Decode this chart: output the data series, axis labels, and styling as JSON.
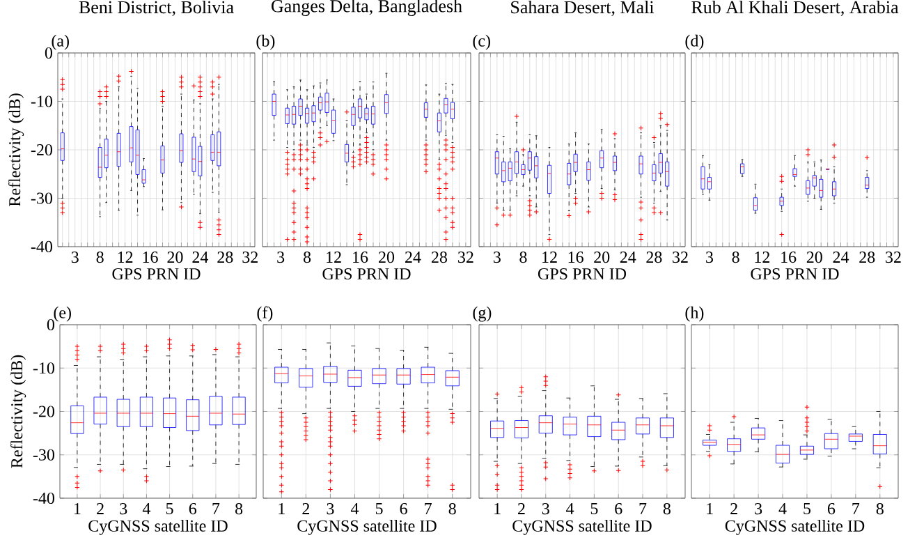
{
  "chart_data": [
    {
      "type": "box",
      "title": "Beni District, Bolivia",
      "xlabel": "GPS PRN ID",
      "ylabel": "Reflectivity (dB)",
      "annotations": [
        "(a)"
      ],
      "ylim": [
        -40,
        0
      ],
      "yticks": [
        -40,
        -30,
        -20,
        -10,
        0
      ],
      "grid": true,
      "categories": [
        null,
        null,
        "3",
        null,
        null,
        null,
        "8",
        null,
        null,
        null,
        "12",
        null,
        null,
        null,
        "16",
        null,
        null,
        null,
        "20",
        null,
        null,
        null,
        "24",
        null,
        null,
        null,
        "28",
        null,
        null,
        null,
        "32"
      ],
      "series": [
        {
          "color": "#0000ff",
          "boxes": [
            {
              "low": -30,
              "q1": -22.2,
              "median": -19.8,
              "q3": -16.5,
              "high": -9.5,
              "outliers": [
                -5.5,
                -6.5,
                -7.5,
                -31,
                -32,
                -33
              ]
            },
            null,
            null,
            null,
            null,
            null,
            {
              "low": -33.8,
              "q1": -25.7,
              "median": -23.6,
              "q3": -19.5,
              "high": -11.5,
              "outliers": [
                -8,
                -9,
                -10.5
              ]
            },
            {
              "low": -30.9,
              "q1": -23.7,
              "median": -21.1,
              "q3": -17.8,
              "high": -10,
              "outliers": [
                -7,
                -8,
                -9
              ]
            },
            null,
            {
              "low": -32.5,
              "q1": -23.4,
              "median": -20.4,
              "q3": -16.6,
              "high": -7,
              "outliers": [
                -4.8,
                -5.8
              ]
            },
            null,
            {
              "low": -28.4,
              "q1": -22.5,
              "median": -19.6,
              "q3": -15.2,
              "high": -4.8,
              "outliers": [
                -3.8
              ]
            },
            {
              "low": -33.5,
              "q1": -25.1,
              "median": -21.1,
              "q3": -15.9,
              "high": -7.3
            },
            {
              "low": -27.6,
              "q1": -26.9,
              "median": -26.2,
              "q3": -24.1,
              "high": -21.8
            },
            null,
            null,
            {
              "low": -32.4,
              "q1": -24.8,
              "median": -22.1,
              "q3": -19.2,
              "high": -11,
              "outliers": [
                -8,
                -9,
                -10
              ]
            },
            null,
            null,
            {
              "low": -30.9,
              "q1": -22.6,
              "median": -20.2,
              "q3": -16.7,
              "high": -8.5,
              "outliers": [
                -5,
                -6,
                -7,
                -31.8
              ]
            },
            null,
            {
              "low": -29.2,
              "q1": -24.5,
              "median": -21.9,
              "q3": -17.4,
              "high": -9.7,
              "outliers": [
                -6.8
              ]
            },
            {
              "low": -33.2,
              "q1": -25.4,
              "median": -22.4,
              "q3": -19.3,
              "high": -10.5,
              "outliers": [
                -5,
                -6,
                -7,
                -8,
                -9,
                -35,
                -36
              ]
            },
            null,
            {
              "low": -28.8,
              "q1": -22.2,
              "median": -20.5,
              "q3": -16.9,
              "high": -9.5,
              "outliers": [
                -6,
                -7,
                -8.5
              ]
            },
            {
              "low": -32.9,
              "q1": -23.3,
              "median": -20.5,
              "q3": -16.3,
              "high": -6.5,
              "outliers": [
                -5,
                -34.5,
                -35.5,
                -36.5,
                -37.5
              ]
            },
            null,
            null,
            null,
            null,
            null
          ]
        }
      ]
    },
    {
      "type": "box",
      "title": "Ganges Delta, Bangladesh",
      "xlabel": "GPS PRN ID",
      "annotations": [
        "(b)"
      ],
      "ylim": [
        -40,
        0
      ],
      "yticks": [
        -40,
        -30,
        -20,
        -10,
        0
      ],
      "grid": true,
      "tick_labels": "x",
      "categories": [
        null,
        null,
        "3",
        null,
        null,
        null,
        "8",
        null,
        null,
        null,
        "12",
        null,
        null,
        null,
        "16",
        null,
        null,
        null,
        "20",
        null,
        null,
        null,
        "24",
        null,
        null,
        null,
        "28",
        null,
        null,
        null,
        "32"
      ],
      "series": [
        {
          "color": "#0000ff",
          "boxes": [
            null,
            {
              "low": -18,
              "q1": -12.9,
              "median": -10,
              "q3": -8.5,
              "high": -5.9
            },
            null,
            {
              "low": -19.5,
              "q1": -14.6,
              "median": -12.8,
              "q3": -11.4,
              "high": -7.6,
              "outliers": [
                -20.5,
                -22,
                -23,
                -24,
                -25,
                -38.5
              ]
            },
            {
              "low": -20,
              "q1": -14.7,
              "median": -12.7,
              "q3": -11,
              "high": -7,
              "outliers": [
                -21,
                -22,
                -24,
                -28.5,
                -31,
                -32,
                -33,
                -35,
                -37,
                -38.5
              ]
            },
            {
              "low": -18,
              "q1": -12.9,
              "median": -11,
              "q3": -9.5,
              "high": -5.6,
              "outliers": [
                -19,
                -20,
                -21,
                -22,
                -24,
                -25
              ]
            },
            {
              "low": -19,
              "q1": -14.5,
              "median": -12.5,
              "q3": -11.4,
              "high": -7.6,
              "outliers": [
                -20,
                -22,
                -24,
                -26,
                -27,
                -28,
                -32,
                -33,
                -34,
                -36,
                -38,
                -39
              ]
            },
            {
              "low": -19.5,
              "q1": -14.2,
              "median": -12.4,
              "q3": -10.9,
              "high": -6.8,
              "outliers": [
                -20.5,
                -21.5,
                -22.5,
                -26
              ]
            },
            {
              "low": -15.5,
              "q1": -11.8,
              "median": -10.3,
              "q3": -9.1,
              "high": -6.2,
              "outliers": [
                -16.5,
                -17.5,
                -19
              ]
            },
            {
              "low": -15,
              "q1": -12.3,
              "median": -10.1,
              "q3": -8.3,
              "high": -5.6,
              "outliers": [
                -18.3
              ]
            },
            {
              "low": -18.1,
              "q1": -16.6,
              "median": -13.9,
              "q3": -11.8,
              "high": -9.5
            },
            null,
            {
              "low": -27.2,
              "q1": -22.5,
              "median": -20.7,
              "q3": -18.9,
              "high": -13.9,
              "outliers": [
                -12.2
              ]
            },
            {
              "low": -20.5,
              "q1": -15,
              "median": -12.7,
              "q3": -11.2,
              "high": -7.6,
              "outliers": [
                -21.5,
                -22.5,
                -23.5
              ]
            },
            {
              "low": -19,
              "q1": -13.4,
              "median": -11,
              "q3": -9.5,
              "high": -5.9,
              "outliers": [
                -20,
                -21,
                -22,
                -23,
                -37.5,
                -38.5
              ]
            },
            {
              "low": -16.5,
              "q1": -13.8,
              "median": -12.6,
              "q3": -11.4,
              "high": -8.5,
              "outliers": [
                -17.5,
                -18.5,
                -19.5,
                -20.5,
                -21.5,
                -22.5
              ]
            },
            {
              "low": -20,
              "q1": -14.7,
              "median": -12.6,
              "q3": -11,
              "high": -6,
              "outliers": [
                -21,
                -22,
                -23,
                -25
              ]
            },
            null,
            {
              "low": -18,
              "q1": -12.5,
              "median": -10.3,
              "q3": -8.6,
              "high": -4.2,
              "outliers": [
                -19,
                -20,
                -21,
                -22,
                -24,
                -26
              ]
            },
            null,
            null,
            null,
            null,
            null,
            {
              "low": -18,
              "q1": -13.3,
              "median": -11.6,
              "q3": -10.3,
              "high": -6.6,
              "outliers": [
                -19,
                -20,
                -21,
                -22,
                -23,
                -24.5
              ]
            },
            null,
            {
              "low": -22,
              "q1": -16.3,
              "median": -14,
              "q3": -12.4,
              "high": -8.5,
              "outliers": [
                -23,
                -24,
                -26,
                -28,
                -29,
                -30,
                -32.5
              ]
            },
            {
              "low": -17,
              "q1": -12.4,
              "median": -10.7,
              "q3": -9.4,
              "high": -6.3,
              "outliers": [
                -18,
                -19,
                -20,
                -22,
                -25,
                -27,
                -28,
                -30,
                -32,
                -34,
                -37,
                -38.5
              ]
            },
            {
              "low": -18.5,
              "q1": -13.6,
              "median": -11.6,
              "q3": -10.2,
              "high": -6.5,
              "outliers": [
                -19.5,
                -20.5,
                -21.5,
                -22.5,
                -24,
                -30,
                -32,
                -33,
                -35,
                -36
              ]
            },
            null,
            null
          ]
        }
      ]
    },
    {
      "type": "box",
      "title": "Sahara Desert, Mali",
      "xlabel": "GPS PRN ID",
      "annotations": [
        "(c)"
      ],
      "ylim": [
        -40,
        0
      ],
      "yticks": [
        -40,
        -30,
        -20,
        -10,
        0
      ],
      "grid": true,
      "tick_labels": "x",
      "categories": [
        null,
        null,
        "3",
        null,
        null,
        null,
        "8",
        null,
        null,
        null,
        "12",
        null,
        null,
        null,
        "16",
        null,
        null,
        null,
        "20",
        null,
        null,
        null,
        "24",
        null,
        null,
        null,
        "28",
        null,
        null,
        null,
        "32"
      ],
      "series": [
        {
          "color": "#0000ff",
          "boxes": [
            null,
            null,
            {
              "low": -31,
              "q1": -25,
              "median": -21.7,
              "q3": -20.4,
              "high": -16.9,
              "outliers": [
                -32,
                -35.5
              ]
            },
            {
              "low": -32.5,
              "q1": -26.6,
              "median": -24.3,
              "q3": -22.5,
              "high": -17.2,
              "outliers": [
                -33.5
              ]
            },
            {
              "low": -32.5,
              "q1": -26.4,
              "median": -23.8,
              "q3": -22.5,
              "high": -19.8,
              "outliers": [
                -33.5
              ]
            },
            {
              "low": -29.5,
              "q1": -24.9,
              "median": -22.5,
              "q3": -20.4,
              "high": -14.3,
              "outliers": [
                -13.1
              ]
            },
            {
              "low": -27.5,
              "q1": -25.1,
              "median": -24.1,
              "q3": -23.1,
              "high": -21,
              "outliers": [
                -20
              ]
            },
            {
              "low": -29.5,
              "q1": -24.2,
              "median": -21.7,
              "q3": -20.4,
              "high": -16.9,
              "outliers": [
                -30.5,
                -31.5,
                -32.5,
                -33.5
              ]
            },
            {
              "low": -31.8,
              "q1": -25.8,
              "median": -23.3,
              "q3": -21.4,
              "high": -17.1,
              "outliers": [
                -32.8
              ]
            },
            null,
            {
              "low": -37.5,
              "q1": -29,
              "median": -24.9,
              "q3": -23.2,
              "high": -19.5,
              "outliers": [
                -38.5
              ]
            },
            null,
            null,
            {
              "low": -32.6,
              "q1": -27.2,
              "median": -25,
              "q3": -22.8,
              "high": -18.8,
              "outliers": [
                -33.6
              ]
            },
            {
              "low": -29,
              "q1": -24.5,
              "median": -22.6,
              "q3": -20.9,
              "high": -16.5,
              "outliers": [
                -30,
                -31
              ]
            },
            null,
            {
              "low": -31.8,
              "q1": -26.3,
              "median": -24.1,
              "q3": -22.5,
              "high": -18.8,
              "outliers": [
                -32.8
              ]
            },
            null,
            {
              "low": -28,
              "q1": -23.7,
              "median": -21.7,
              "q3": -20.2,
              "high": -15.8,
              "outliers": [
                -29,
                -30
              ]
            },
            null,
            {
              "low": -28.3,
              "q1": -24.3,
              "median": -22.6,
              "q3": -21.3,
              "high": -17.7,
              "outliers": [
                -16.7,
                -29.3,
                -30.3
              ]
            },
            null,
            null,
            null,
            {
              "low": -29.8,
              "q1": -25,
              "median": -22.9,
              "q3": -21.3,
              "high": -16.5,
              "outliers": [
                -15.5,
                -30.8,
                -32,
                -34.5,
                -37.5,
                -38.5
              ]
            },
            null,
            {
              "low": -31,
              "q1": -26.4,
              "median": -24.8,
              "q3": -23.1,
              "high": -18.5,
              "outliers": [
                -17.5,
                -32,
                -33
              ]
            },
            {
              "low": -28.6,
              "q1": -24.8,
              "median": -22.6,
              "q3": -20.8,
              "high": -15,
              "outliers": [
                -12.5,
                -13.5,
                -33
              ]
            },
            {
              "low": -34.5,
              "q1": -27.5,
              "median": -24.5,
              "q3": -22.5,
              "high": -16,
              "outliers": [
                -14.8
              ]
            },
            null,
            null
          ]
        }
      ]
    },
    {
      "type": "box",
      "title": "Rub Al Khali Desert, Arabia",
      "xlabel": "GPS PRN ID",
      "annotations": [
        "(d)"
      ],
      "ylim": [
        -40,
        0
      ],
      "yticks": [
        -40,
        -30,
        -20,
        -10,
        0
      ],
      "grid": true,
      "tick_labels": "x",
      "categories": [
        null,
        null,
        "3",
        null,
        null,
        null,
        "8",
        null,
        null,
        null,
        "12",
        null,
        null,
        null,
        "16",
        null,
        null,
        null,
        "20",
        null,
        null,
        null,
        "24",
        null,
        null,
        null,
        "28",
        null,
        null,
        null,
        "32"
      ],
      "series": [
        {
          "color": "#0000ff",
          "boxes": [
            null,
            {
              "low": -29.2,
              "q1": -28.1,
              "median": -26,
              "q3": -23.5,
              "high": -21.2
            },
            {
              "low": -30.4,
              "q1": -28.1,
              "median": -26.6,
              "q3": -25.7,
              "high": -23.1
            },
            null,
            null,
            null,
            null,
            {
              "low": -25.5,
              "q1": -24.9,
              "median": -23.5,
              "q3": -22.9,
              "high": -22
            },
            null,
            {
              "low": -33.1,
              "q1": -32.5,
              "median": -31.5,
              "q3": -29.9,
              "high": -27.1
            },
            null,
            null,
            null,
            {
              "low": -32.7,
              "q1": -31.5,
              "median": -30.6,
              "q3": -29.8,
              "high": -28.1,
              "outliers": [
                -25.5,
                -26.5,
                -37.5
              ]
            },
            null,
            {
              "low": -27.5,
              "q1": -25.5,
              "median": -25.1,
              "q3": -23.9,
              "high": -21.2
            },
            null,
            {
              "low": -30.6,
              "q1": -29.2,
              "median": -27.9,
              "q3": -26.4,
              "high": -22.5,
              "outliers": [
                -20,
                -21
              ]
            },
            {
              "low": -30,
              "q1": -27.5,
              "median": -25.8,
              "q3": -25.3,
              "high": -22.5
            },
            {
              "low": -32.3,
              "q1": -29.8,
              "median": -28.4,
              "q3": -26.1,
              "high": -22.1
            },
            {
              "low": -24,
              "q1": -24,
              "median": -24,
              "q3": -24,
              "high": -24
            },
            {
              "low": -31,
              "q1": -29.5,
              "median": -28.1,
              "q3": -26.6,
              "high": -23.5,
              "outliers": [
                -19,
                -21.5
              ]
            },
            null,
            null,
            null,
            null,
            {
              "low": -29.8,
              "q1": -28,
              "median": -27.3,
              "q3": -25.7,
              "high": -24.3,
              "outliers": [
                -21.6
              ]
            },
            null,
            null,
            null,
            null
          ]
        }
      ]
    },
    {
      "type": "box",
      "xlabel": "CyGNSS satellite ID",
      "ylabel": "Reflectivity (dB)",
      "annotations": [
        "(e)"
      ],
      "ylim": [
        -40,
        0
      ],
      "yticks": [
        -40,
        -30,
        -20,
        -10,
        0
      ],
      "grid": true,
      "categories": [
        "1",
        "2",
        "3",
        "4",
        "5",
        "6",
        "7",
        "8"
      ],
      "series": [
        {
          "color": "#0000ff",
          "boxes": [
            {
              "low": -32.9,
              "q1": -25.1,
              "median": -22.6,
              "q3": -18.7,
              "high": -9.4,
              "outliers": [
                -5,
                -6,
                -7,
                -8,
                -35,
                -36.5,
                -37.5
              ]
            },
            {
              "low": -32.2,
              "q1": -22.9,
              "median": -20.4,
              "q3": -16.7,
              "high": -7.4,
              "outliers": [
                -5,
                -6,
                -33.7
              ]
            },
            {
              "low": -32.2,
              "q1": -23.5,
              "median": -20.4,
              "q3": -17.2,
              "high": -8,
              "outliers": [
                -4.5,
                -5.5,
                -6.5,
                -33.5
              ]
            },
            {
              "low": -33.2,
              "q1": -23.5,
              "median": -20.4,
              "q3": -16.7,
              "high": -7.4,
              "outliers": [
                -5,
                -6,
                -35,
                -36
              ]
            },
            {
              "low": -32.7,
              "q1": -23.7,
              "median": -20.5,
              "q3": -16.9,
              "high": -7.2,
              "outliers": [
                -3.5,
                -4.5,
                -5.5
              ]
            },
            {
              "low": -32.6,
              "q1": -24.4,
              "median": -21.1,
              "q3": -17.3,
              "high": -7.2,
              "outliers": [
                -4.8,
                -5.8
              ]
            },
            {
              "low": -32,
              "q1": -23.1,
              "median": -20.4,
              "q3": -16.5,
              "high": -6.9,
              "outliers": [
                -5.7
              ]
            },
            {
              "low": -32.2,
              "q1": -23,
              "median": -20.6,
              "q3": -16.7,
              "high": -7.4,
              "outliers": [
                -4.5,
                -5.5,
                -6.5
              ]
            }
          ]
        }
      ]
    },
    {
      "type": "box",
      "xlabel": "CyGNSS satellite ID",
      "annotations": [
        "(f)"
      ],
      "ylim": [
        -40,
        0
      ],
      "yticks": [
        -40,
        -30,
        -20,
        -10,
        0
      ],
      "grid": true,
      "tick_labels": "x",
      "categories": [
        "1",
        "2",
        "3",
        "4",
        "5",
        "6",
        "7",
        "8"
      ],
      "series": [
        {
          "color": "#0000ff",
          "boxes": [
            {
              "low": -19.3,
              "q1": -13.4,
              "median": -11.3,
              "q3": -9.8,
              "high": -5.7,
              "outliers": [
                -20.3,
                -21.3,
                -22.3,
                -23.3,
                -25,
                -27,
                -28,
                -30,
                -32,
                -33,
                -35,
                -37,
                -38.5
              ]
            },
            {
              "low": -20.5,
              "q1": -14.4,
              "median": -11.8,
              "q3": -10.1,
              "high": -5.7,
              "outliers": [
                -21.5,
                -22.5,
                -23.5,
                -24.5,
                -25.5,
                -26.5
              ]
            },
            {
              "low": -19.3,
              "q1": -13.3,
              "median": -11.4,
              "q3": -9.6,
              "high": -4.2,
              "outliers": [
                -20.3,
                -21.3,
                -22.3,
                -23.3,
                -24.3,
                -26,
                -27,
                -28,
                -30,
                -32,
                -34,
                -36,
                -38
              ]
            },
            {
              "low": -20,
              "q1": -14.2,
              "median": -12.2,
              "q3": -10.5,
              "high": -4.9,
              "outliers": [
                -21,
                -22,
                -23,
                -24.5
              ]
            },
            {
              "low": -19.3,
              "q1": -13.6,
              "median": -11.6,
              "q3": -10.1,
              "high": -5.5,
              "outliers": [
                -20.3,
                -21.3,
                -22.3,
                -23.3,
                -24.3,
                -25.3,
                -26.3
              ]
            },
            {
              "low": -19.3,
              "q1": -13.7,
              "median": -11.6,
              "q3": -10.1,
              "high": -5.9,
              "outliers": [
                -20.3,
                -21.3,
                -22.3,
                -23.3,
                -24.5
              ]
            },
            {
              "low": -19.3,
              "q1": -13.4,
              "median": -11.5,
              "q3": -9.8,
              "high": -5.2,
              "outliers": [
                -20.3,
                -21.3,
                -22.3,
                -23.3,
                -25,
                -31,
                -32,
                -33,
                -35,
                -36,
                -37
              ]
            },
            {
              "low": -19.5,
              "q1": -14.1,
              "median": -12.1,
              "q3": -10.6,
              "high": -6.6,
              "outliers": [
                -20.5,
                -21.5,
                -22.5,
                -37,
                -38
              ]
            }
          ]
        }
      ]
    },
    {
      "type": "box",
      "xlabel": "CyGNSS satellite ID",
      "annotations": [
        "(g)"
      ],
      "ylim": [
        -40,
        0
      ],
      "yticks": [
        -40,
        -30,
        -20,
        -10,
        0
      ],
      "grid": true,
      "tick_labels": "x",
      "categories": [
        "1",
        "2",
        "3",
        "4",
        "5",
        "6",
        "7",
        "8"
      ],
      "series": [
        {
          "color": "#0000ff",
          "boxes": [
            {
              "low": -31.5,
              "q1": -26,
              "median": -23.9,
              "q3": -22.2,
              "high": -17,
              "outliers": [
                -16,
                -32.5,
                -34.5,
                -37,
                -38
              ]
            },
            {
              "low": -32,
              "q1": -26.1,
              "median": -23.7,
              "q3": -22.1,
              "high": -16.5,
              "outliers": [
                -14.5,
                -15.5,
                -33,
                -34,
                -35,
                -36,
                -37,
                -38
              ]
            },
            {
              "low": -30.8,
              "q1": -25,
              "median": -22.6,
              "q3": -21,
              "high": -15.2,
              "outliers": [
                -12,
                -13,
                -14,
                -31.8,
                -32.8,
                -35.5
              ]
            },
            {
              "low": -31.3,
              "q1": -25.4,
              "median": -22.9,
              "q3": -21.3,
              "high": -16.9,
              "outliers": [
                -32.3,
                -33.3,
                -34.3,
                -35.3
              ]
            },
            {
              "low": -32.7,
              "q1": -25.8,
              "median": -23.1,
              "q3": -21.1,
              "high": -14.1,
              "outliers": [
                -33.7
              ]
            },
            {
              "low": -32.6,
              "q1": -26.5,
              "median": -24.3,
              "q3": -22.5,
              "high": -17.2,
              "outliers": [
                -16.2,
                -33.6
              ]
            },
            {
              "low": -30.5,
              "q1": -25.2,
              "median": -23.1,
              "q3": -21.5,
              "high": -17,
              "outliers": [
                -31.5,
                -32.5
              ]
            },
            {
              "low": -32.5,
              "q1": -26,
              "median": -23.3,
              "q3": -21.5,
              "high": -15.9,
              "outliers": [
                -33.5
              ]
            }
          ]
        }
      ]
    },
    {
      "type": "box",
      "xlabel": "CyGNSS satellite ID",
      "annotations": [
        "(h)"
      ],
      "ylim": [
        -40,
        0
      ],
      "yticks": [
        -40,
        -30,
        -20,
        -10,
        0
      ],
      "grid": true,
      "tick_labels": "x",
      "categories": [
        "1",
        "2",
        "3",
        "4",
        "5",
        "6",
        "7",
        "8"
      ],
      "series": [
        {
          "color": "#0000ff",
          "boxes": [
            {
              "low": -29.2,
              "q1": -27.8,
              "median": -27.1,
              "q3": -26.6,
              "high": -25.3,
              "outliers": [
                -23.3,
                -24.3,
                -30.2
              ]
            },
            {
              "low": -32.1,
              "q1": -29.2,
              "median": -27.6,
              "q3": -26.3,
              "high": -22.5,
              "outliers": [
                -21.2
              ]
            },
            {
              "low": -29.3,
              "q1": -26.4,
              "median": -25.4,
              "q3": -23.8,
              "high": -21.6
            },
            {
              "low": -32.8,
              "q1": -31.9,
              "median": -29.9,
              "q3": -27.8,
              "high": -22.1
            },
            {
              "low": -31,
              "q1": -29.9,
              "median": -28.9,
              "q3": -28,
              "high": -25.4,
              "outliers": [
                -19,
                -21.5,
                -22.5,
                -23.5,
                -24.5
              ]
            },
            {
              "low": -30.3,
              "q1": -28.6,
              "median": -26.4,
              "q3": -25.1,
              "high": -21.8
            },
            {
              "low": -28.6,
              "q1": -26.9,
              "median": -25.7,
              "q3": -25.2,
              "high": -23.5
            },
            {
              "low": -33,
              "q1": -29.8,
              "median": -27.9,
              "q3": -25.3,
              "high": -20,
              "outliers": [
                -37.3
              ]
            }
          ]
        }
      ]
    }
  ]
}
